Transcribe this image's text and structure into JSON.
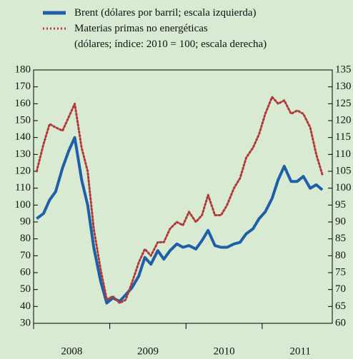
{
  "chart_data": {
    "type": "line",
    "x": [
      2008.04,
      2008.13,
      2008.21,
      2008.29,
      2008.38,
      2008.46,
      2008.54,
      2008.63,
      2008.71,
      2008.79,
      2008.88,
      2008.96,
      2009.04,
      2009.13,
      2009.21,
      2009.29,
      2009.38,
      2009.46,
      2009.54,
      2009.63,
      2009.71,
      2009.79,
      2009.88,
      2009.96,
      2010.04,
      2010.13,
      2010.21,
      2010.29,
      2010.38,
      2010.46,
      2010.54,
      2010.63,
      2010.71,
      2010.79,
      2010.88,
      2010.96,
      2011.04,
      2011.13,
      2011.21,
      2011.29,
      2011.38,
      2011.46,
      2011.54,
      2011.63,
      2011.71,
      2011.79
    ],
    "series": [
      {
        "name": "Brent (dólares por barril; escala izquierda)",
        "color": "#1f5fa8",
        "values": [
          92,
          95,
          103,
          108,
          122,
          132,
          140,
          115,
          100,
          75,
          55,
          42,
          45,
          43,
          47,
          51,
          58,
          69,
          65,
          73,
          68,
          73,
          77,
          75,
          76,
          74,
          79,
          85,
          76,
          75,
          75,
          77,
          78,
          83,
          86,
          92,
          96,
          104,
          115,
          123,
          114,
          114,
          117,
          110,
          112,
          109
        ]
      },
      {
        "name": "Materias primas no energéticas\n(dólares; índice: 2010 = 100; escala derecha)",
        "color": "#b03a3a",
        "axis": "y2",
        "values": [
          105,
          113,
          119,
          118,
          117,
          121,
          125,
          112,
          105,
          88,
          76,
          67,
          68,
          66,
          67,
          72,
          78,
          82,
          80,
          84,
          84,
          88,
          90,
          89,
          93,
          90,
          92,
          98,
          92,
          92,
          95,
          100,
          103,
          109,
          112,
          116,
          122,
          127,
          125,
          126,
          122,
          123,
          122,
          118,
          110,
          104
        ]
      }
    ],
    "xlim": [
      2008,
      2011.92
    ],
    "xticks": [
      {
        "value": 2008.5,
        "label": "2008"
      },
      {
        "value": 2009.5,
        "label": "2009"
      },
      {
        "value": 2010.5,
        "label": "2010"
      },
      {
        "value": 2011.5,
        "label": "2011"
      }
    ],
    "ylim": [
      30,
      180
    ],
    "yticks": [
      30,
      40,
      50,
      60,
      70,
      80,
      90,
      100,
      110,
      120,
      130,
      140,
      150,
      160,
      170,
      180
    ],
    "y2lim": [
      60,
      135
    ],
    "y2ticks": [
      60,
      65,
      70,
      75,
      80,
      85,
      90,
      95,
      100,
      105,
      110,
      115,
      120,
      125,
      130,
      135
    ]
  }
}
